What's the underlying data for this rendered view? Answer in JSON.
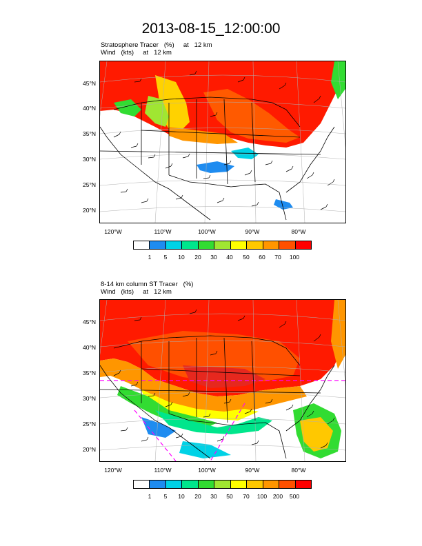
{
  "title": "2013-08-15_12:00:00",
  "panels": [
    {
      "subtitle_line1": "Stratosphere Tracer   (%)     at   12 km",
      "subtitle_line2": "Wind   (kts)     at   12 km",
      "lat_labels": [
        "45°N",
        "40°N",
        "35°N",
        "30°N",
        "25°N",
        "20°N"
      ],
      "lon_labels": [
        "120°W",
        "110°W",
        "100°W",
        "90°W",
        "80°W"
      ],
      "colorbar_labels": [
        "1",
        "5",
        "10",
        "20",
        "30",
        "40",
        "50",
        "60",
        "70",
        "100"
      ]
    },
    {
      "subtitle_line1": "8-14 km column ST Tracer   (%)",
      "subtitle_line2": "Wind   (kts)     at   12 km",
      "lat_labels": [
        "45°N",
        "40°N",
        "35°N",
        "30°N",
        "25°N",
        "20°N"
      ],
      "lon_labels": [
        "120°W",
        "110°W",
        "100°W",
        "90°W",
        "80°W"
      ],
      "colorbar_labels": [
        "1",
        "5",
        "10",
        "20",
        "30",
        "50",
        "70",
        "100",
        "200",
        "500"
      ]
    }
  ],
  "colorbar_colors": [
    "#ffffff",
    "#1e8cf0",
    "#00d2e6",
    "#00e68c",
    "#32dc32",
    "#a0e632",
    "#ffff00",
    "#ffc800",
    "#ff9600",
    "#ff5000",
    "#ff0000"
  ]
}
